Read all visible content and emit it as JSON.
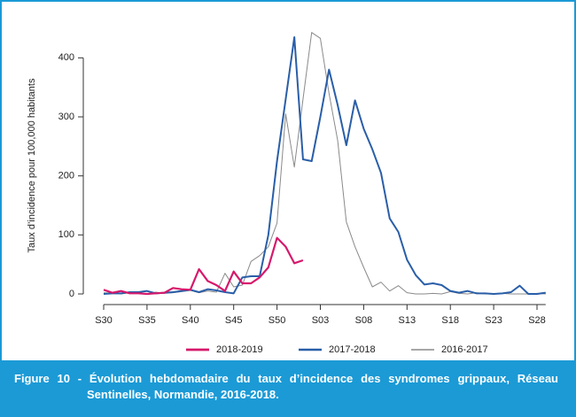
{
  "chart_data": {
    "type": "line",
    "y_label": "Taux d’incidence pour 100,000 habitants",
    "caption": "Figure 10 - Évolution hebdomadaire du taux d’incidence des syndromes grippaux, Réseau Sentinelles, Normandie, 2016-2018.",
    "categories": [
      "S30",
      null,
      null,
      null,
      null,
      "S35",
      null,
      null,
      null,
      null,
      "S40",
      null,
      null,
      null,
      null,
      "S45",
      null,
      null,
      null,
      null,
      "S50",
      null,
      null,
      null,
      null,
      "S03",
      null,
      null,
      null,
      null,
      "S08",
      null,
      null,
      null,
      null,
      "S13",
      null,
      null,
      null,
      null,
      "S18",
      null,
      null,
      null,
      null,
      "S23",
      null,
      null,
      null,
      null,
      "S28",
      null
    ],
    "ylim": [
      0,
      450
    ],
    "yticks": [
      0,
      100,
      200,
      300,
      400
    ],
    "series": [
      {
        "name": "2018-2019",
        "color": "#d6186b",
        "width": 2.2,
        "values": [
          7,
          2,
          5,
          1,
          1,
          0,
          1,
          2,
          10,
          8,
          7,
          42,
          22,
          15,
          5,
          38,
          18,
          18,
          28,
          45,
          95,
          80,
          52,
          57,
          null,
          null,
          null,
          null,
          null,
          null,
          null,
          null,
          null,
          null,
          null,
          null,
          null,
          null,
          null,
          null,
          null,
          null,
          null,
          null,
          null,
          null,
          null,
          null,
          null,
          null,
          null,
          null
        ]
      },
      {
        "name": "2017-2018",
        "color": "#2a5ea8",
        "width": 2,
        "values": [
          0,
          1,
          1,
          3,
          3,
          5,
          1,
          2,
          3,
          5,
          7,
          3,
          8,
          6,
          3,
          1,
          28,
          30,
          30,
          100,
          225,
          330,
          435,
          228,
          225,
          300,
          380,
          320,
          252,
          328,
          280,
          245,
          205,
          128,
          105,
          58,
          32,
          16,
          18,
          15,
          5,
          2,
          5,
          1,
          1,
          0,
          1,
          3,
          14,
          0,
          0,
          2
        ]
      },
      {
        "name": "2016-2017",
        "color": "#8a8a8a",
        "width": 1,
        "values": [
          2,
          1,
          0,
          2,
          1,
          0,
          3,
          1,
          2,
          4,
          6,
          2,
          5,
          3,
          35,
          12,
          15,
          55,
          65,
          80,
          120,
          305,
          215,
          330,
          443,
          433,
          340,
          260,
          122,
          80,
          45,
          12,
          20,
          5,
          14,
          2,
          0,
          0,
          1,
          0,
          4,
          1,
          0,
          2,
          0,
          0,
          1,
          0,
          0,
          0,
          1,
          0
        ]
      }
    ]
  }
}
